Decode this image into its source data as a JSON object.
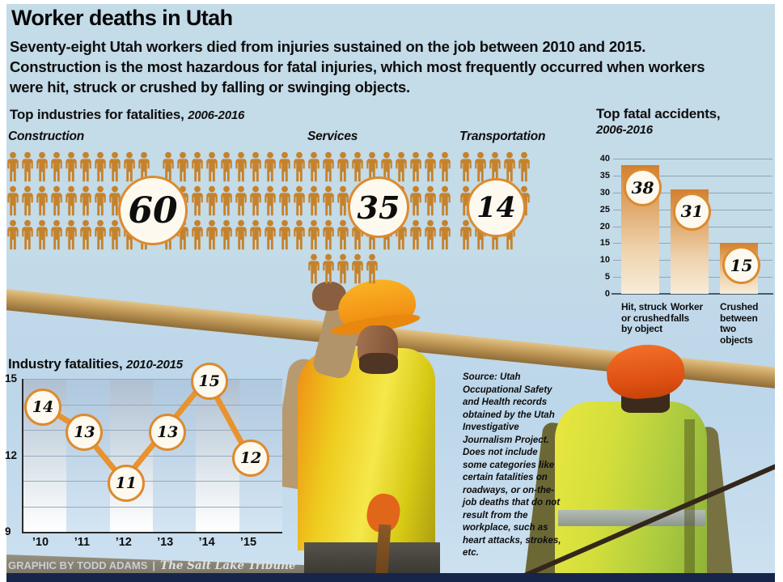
{
  "title": "Worker deaths in Utah",
  "intro": "Seventy-eight Utah workers died from injuries sustained on the job between 2010 and 2015. Construction is the most hazardous for fatal injuries, which most frequently occurred when workers were hit, struck or crushed by falling or swinging objects.",
  "industries_section": {
    "heading": "Top industries for fatalities,",
    "heading_period": "2006-2016",
    "groups": [
      {
        "label": "Construction",
        "value": 60
      },
      {
        "label": "Services",
        "value": 35
      },
      {
        "label": "Transportation",
        "value": 14
      }
    ]
  },
  "accidents_chart": {
    "heading": "Top fatal accidents,",
    "heading_period": "2006-2016",
    "y_ticks": [
      40,
      35,
      30,
      25,
      20,
      15,
      10,
      5,
      0
    ],
    "bars": [
      {
        "label_lines": [
          "Hit, struck",
          "or crushed",
          "by object"
        ],
        "value": 38
      },
      {
        "label_lines": [
          "Worker",
          "falls"
        ],
        "value": 31
      },
      {
        "label_lines": [
          "Crushed",
          "between",
          "two",
          "objects"
        ],
        "value": 15
      }
    ]
  },
  "line_chart": {
    "heading": "Industry fatalities,",
    "heading_period": "2010-2015",
    "y_min": 9,
    "y_max": 15,
    "y_ticks": [
      15,
      12,
      9
    ],
    "points": [
      {
        "x": "’10",
        "value": 14
      },
      {
        "x": "’11",
        "value": 13
      },
      {
        "x": "’12",
        "value": 11
      },
      {
        "x": "’13",
        "value": 13
      },
      {
        "x": "’14",
        "value": 15
      },
      {
        "x": "’15",
        "value": 12
      }
    ]
  },
  "source_note": "Source: Utah Occupational Safety and Health records obtained by the Utah Investigative Journalism Project. Does not include some categories like certain fatalities on roadways, or on-the-job deaths that do not result from the workplace, such as heart attacks, strokes, etc.",
  "credit": {
    "text": "GRAPHIC BY TODD ADAMS",
    "separator": "|",
    "publication": "The Salt Lake Tribune"
  },
  "colors": {
    "panel_bg": "#c4dbe8",
    "icon_orange": "#c5822c",
    "circle_ring": "#dd8a2e",
    "line_orange": "#e8932f",
    "bar_top": "#d2802f",
    "gridline": "#8fa6bb",
    "text": "#0e0e0e",
    "credit_text": "#c9ced3"
  },
  "chart_data": [
    {
      "type": "bar",
      "style": "pictogram_unit_chart",
      "title": "Top industries for fatalities, 2006-2016",
      "categories": [
        "Construction",
        "Services",
        "Transportation"
      ],
      "values": [
        60,
        35,
        14
      ],
      "unit": "1 person icon = 1 death"
    },
    {
      "type": "bar",
      "title": "Top fatal accidents, 2006-2016",
      "categories": [
        "Hit, struck or crushed by object",
        "Worker falls",
        "Crushed between two objects"
      ],
      "values": [
        38,
        31,
        15
      ],
      "ylim": [
        0,
        40
      ],
      "ytick_interval": 5,
      "grid": true,
      "data_labels": true
    },
    {
      "type": "line",
      "title": "Industry fatalities, 2010-2015",
      "x": [
        "'10",
        "'11",
        "'12",
        "'13",
        "'14",
        "'15"
      ],
      "values": [
        14,
        13,
        11,
        13,
        15,
        12
      ],
      "ylim": [
        9,
        15
      ],
      "yticks_labeled": [
        15,
        12,
        9
      ],
      "grid": true,
      "data_labels": true
    }
  ]
}
